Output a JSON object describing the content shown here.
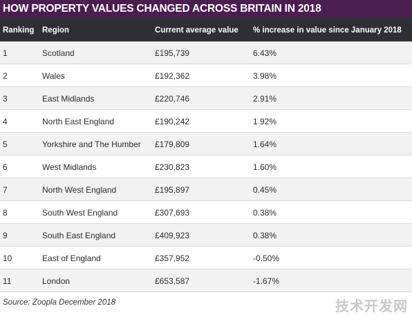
{
  "title": "HOW PROPERTY VALUES CHANGED ACROSS BRITAIN IN 2018",
  "columns": {
    "ranking": "Ranking",
    "region": "Region",
    "value": "Current average value",
    "increase": "% increase in value since January 2018"
  },
  "rows": [
    {
      "rank": "1",
      "region": "Scotland",
      "value": "£195,739",
      "increase": "6.43%"
    },
    {
      "rank": "2",
      "region": "Wales",
      "value": "£192,362",
      "increase": "3.98%"
    },
    {
      "rank": "3",
      "region": "East Midlands",
      "value": "£220,746",
      "increase": "2.91%"
    },
    {
      "rank": "4",
      "region": "North East England",
      "value": "£190,242",
      "increase": "1.92%"
    },
    {
      "rank": "5",
      "region": "Yorkshire and The Humber",
      "value": "£179,809",
      "increase": "1.64%"
    },
    {
      "rank": "6",
      "region": "West Midlands",
      "value": "£230,823",
      "increase": "1.60%"
    },
    {
      "rank": "7",
      "region": "North West England",
      "value": "£195,897",
      "increase": "0.45%"
    },
    {
      "rank": "8",
      "region": "South West England",
      "value": "£307,693",
      "increase": "0.38%"
    },
    {
      "rank": "9",
      "region": "South East England",
      "value": "£409,923",
      "increase": "0.38%"
    },
    {
      "rank": "10",
      "region": "East of England",
      "value": "£357,952",
      "increase": "-0.50%"
    },
    {
      "rank": "11",
      "region": "London",
      "value": "£653,587",
      "increase": "-1.67%"
    }
  ],
  "source": "Source: Zoopla December 2018",
  "watermark": "技术开发网",
  "colors": {
    "title_bg": "#4a1e4f",
    "header_bg": "#2f2f33",
    "alt_row_bg": "#f2f2f2"
  }
}
